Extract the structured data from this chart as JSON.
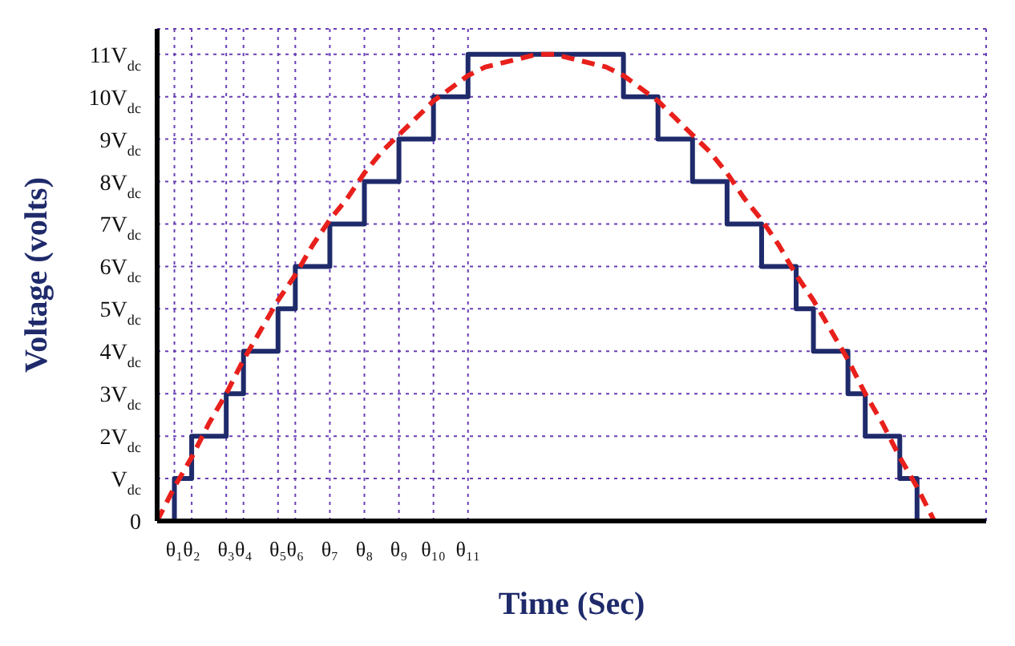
{
  "chart_data": {
    "type": "step",
    "xlabel": "Time (Sec)",
    "ylabel": "Voltage (volts)",
    "categories": [
      null,
      "θ₁",
      "θ₂",
      null,
      "θ₃",
      "θ₄",
      null,
      "θ₅",
      "θ₆",
      null,
      "θ₇",
      null,
      "θ₈",
      null,
      "θ₉",
      null,
      "θ₁₀",
      null,
      "θ₁₁",
      null,
      null,
      null,
      null,
      null,
      null,
      null,
      null,
      null,
      null,
      null,
      null,
      null,
      null,
      null,
      null,
      null,
      null,
      null,
      null,
      null,
      null,
      null,
      null,
      null,
      null,
      null,
      null,
      null,
      null
    ],
    "ylim": [
      0,
      11.6
    ],
    "yticks": [
      0,
      {
        "value": 1,
        "label": "V$_{dc}$"
      },
      {
        "value": 2,
        "label": "2V$_{dc}$"
      },
      {
        "value": 3,
        "label": "3V$_{dc}$"
      },
      {
        "value": 4,
        "label": "4V$_{dc}$"
      },
      {
        "value": 5,
        "label": "5V$_{dc}$"
      },
      {
        "value": 6,
        "label": "6V$_{dc}$"
      },
      {
        "value": 7,
        "label": "7V$_{dc}$"
      },
      {
        "value": 8,
        "label": "8V$_{dc}$"
      },
      {
        "value": 9,
        "label": "9V$_{dc}$"
      },
      {
        "value": 10,
        "label": "10V$_{dc}$"
      },
      {
        "value": 11,
        "label": "11V$_{dc}$"
      }
    ],
    "grid": true,
    "series": [
      {
        "color": "#1f2a6b",
        "line_style": "solid",
        "values": [
          0,
          1,
          2,
          2,
          3,
          4,
          4,
          5,
          6,
          6,
          7,
          7,
          8,
          8,
          9,
          9,
          10,
          10,
          11,
          11,
          11,
          11,
          11,
          11,
          11,
          11,
          11,
          10,
          10,
          9,
          9,
          8,
          8,
          7,
          7,
          6,
          6,
          5,
          4,
          4,
          3,
          2,
          2,
          1,
          0,
          null,
          null,
          null,
          null
        ]
      },
      {
        "type": "line",
        "color": "#e8201c",
        "line_style": "dashed",
        "values": [
          0,
          0.8,
          1.5,
          2.3,
          3,
          3.8,
          4.5,
          5.2,
          5.8,
          6.5,
          7.1,
          7.6,
          8.2,
          8.7,
          9.1,
          9.5,
          9.9,
          10.2,
          10.5,
          10.7,
          10.8,
          10.9,
          11,
          11,
          10.9,
          10.8,
          10.7,
          10.5,
          10.2,
          9.9,
          9.5,
          9.1,
          8.7,
          8.2,
          7.6,
          7.1,
          6.5,
          5.8,
          5.2,
          4.5,
          3.8,
          3,
          2.3,
          1.5,
          0.8,
          0,
          null,
          null,
          null
        ]
      }
    ]
  }
}
